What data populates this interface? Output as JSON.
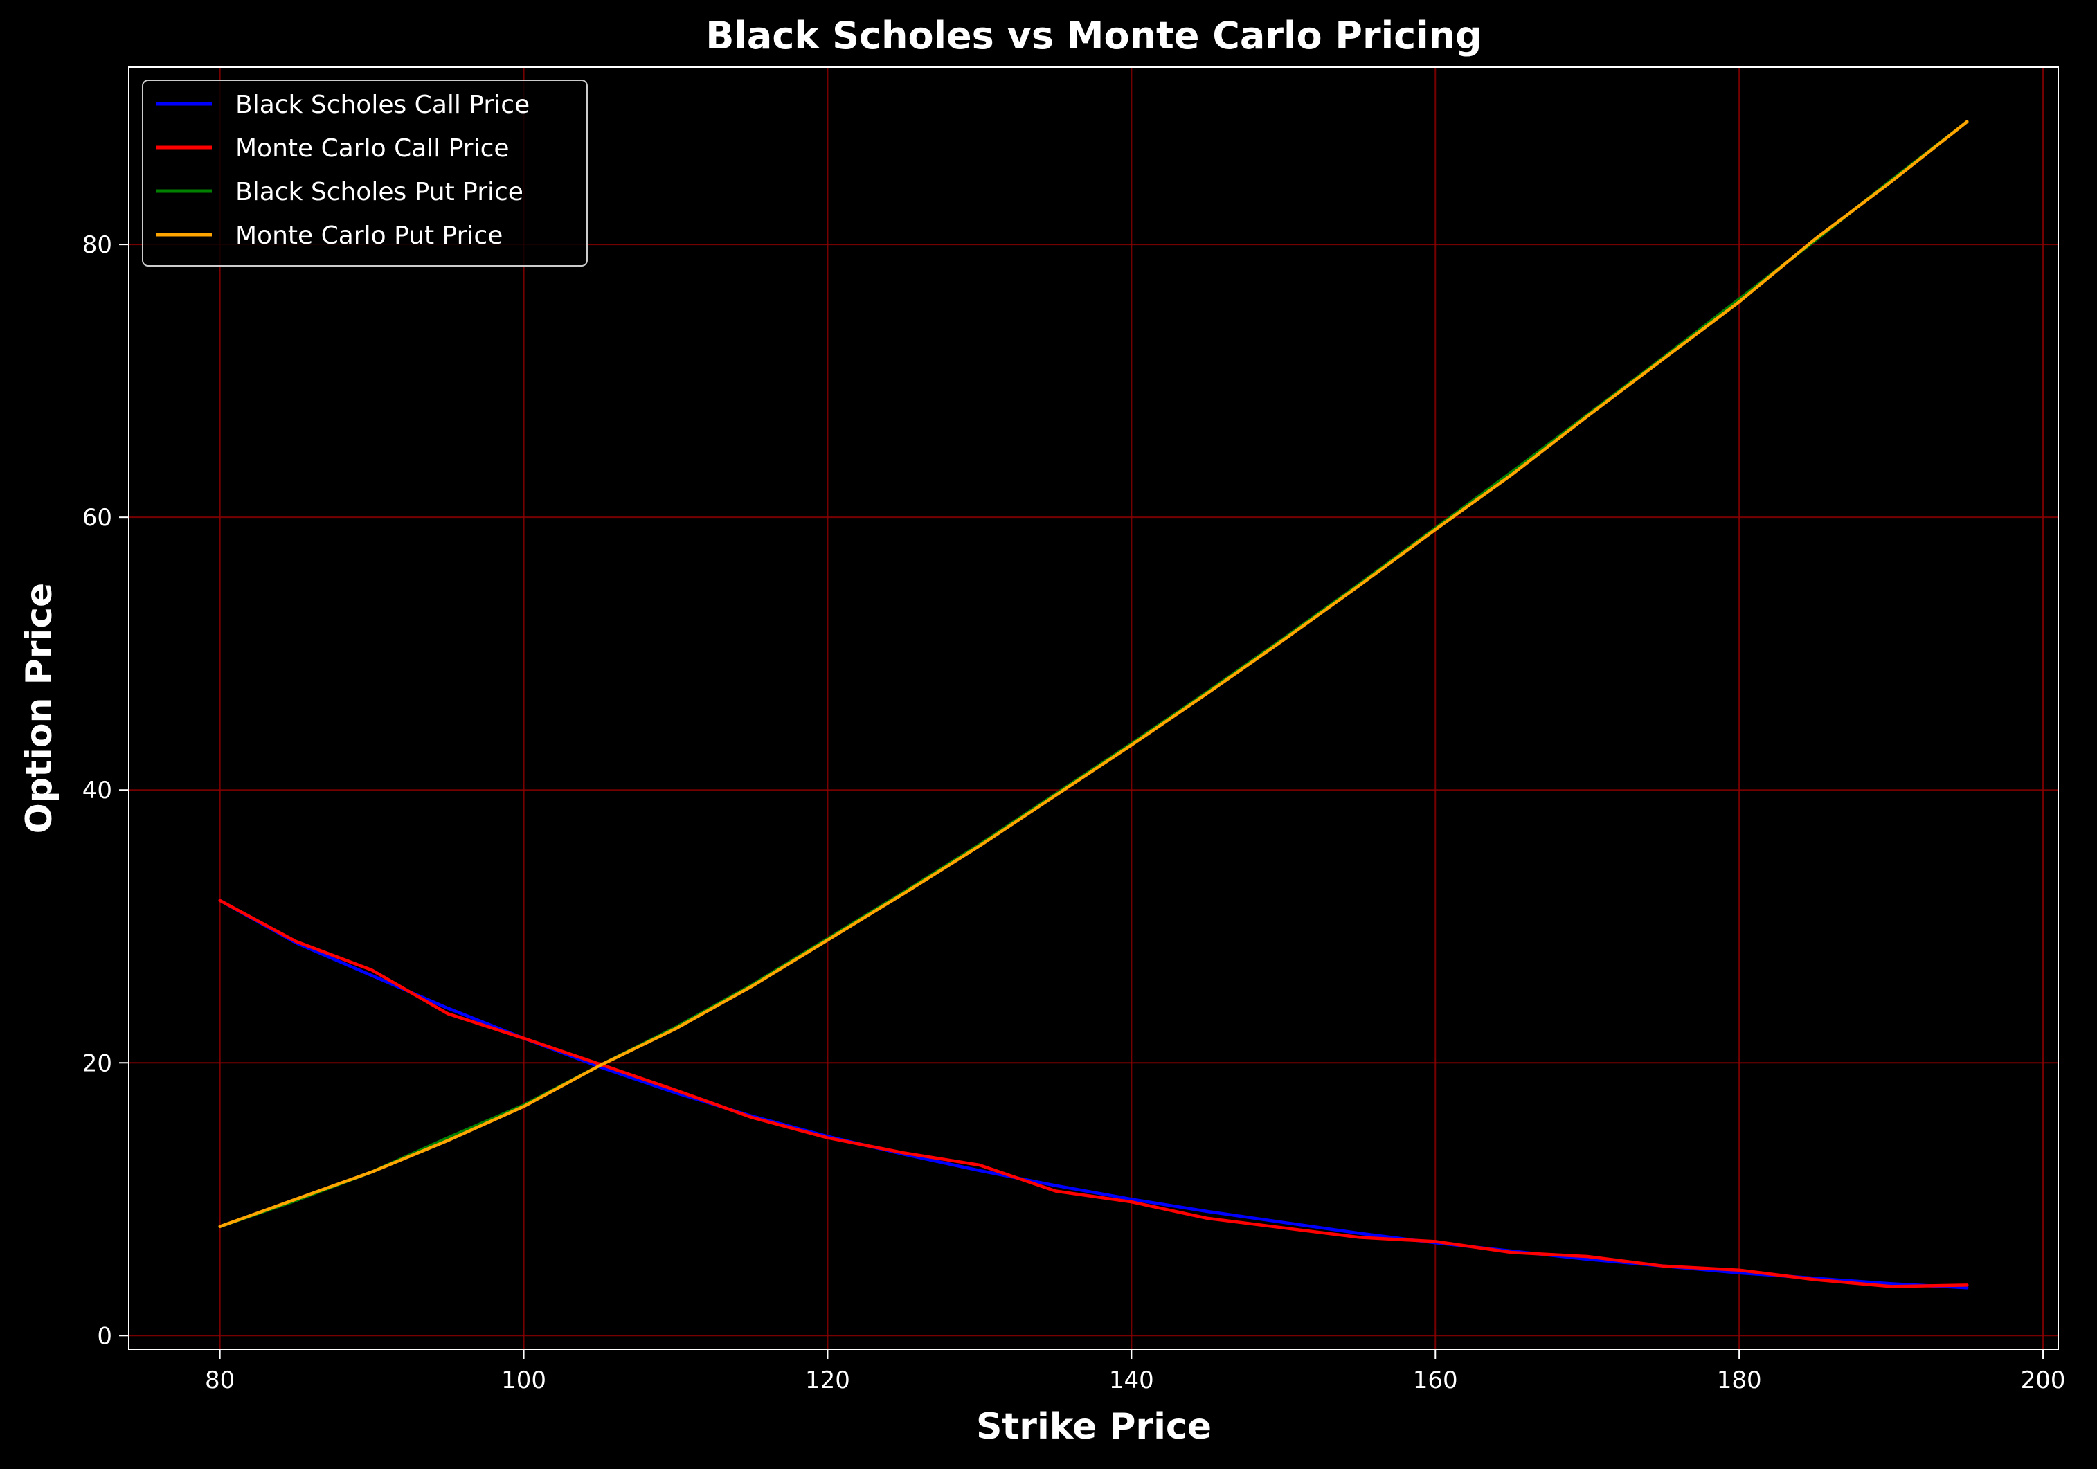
{
  "chart_data": {
    "type": "line",
    "title": "Black Scholes vs Monte Carlo Pricing",
    "xlabel": "Strike Price",
    "ylabel": "Option Price",
    "xlim": [
      74,
      201
    ],
    "ylim": [
      -1,
      93
    ],
    "xticks": [
      80,
      100,
      120,
      140,
      160,
      180,
      200
    ],
    "yticks": [
      0,
      20,
      40,
      60,
      80
    ],
    "grid": true,
    "legend_position": "top-left",
    "x": [
      80,
      85,
      90,
      95,
      100,
      105,
      110,
      115,
      120,
      125,
      130,
      135,
      140,
      145,
      150,
      155,
      160,
      165,
      170,
      175,
      180,
      185,
      190,
      195
    ],
    "series": [
      {
        "name": "Black Scholes Call Price",
        "color": "#0000ff",
        "values": [
          31.9,
          28.8,
          26.4,
          24.0,
          21.8,
          19.7,
          17.8,
          16.1,
          14.6,
          13.3,
          12.1,
          11.0,
          10.0,
          9.1,
          8.3,
          7.5,
          6.8,
          6.2,
          5.6,
          5.1,
          4.6,
          4.2,
          3.8,
          3.5
        ]
      },
      {
        "name": "Monte Carlo Call Price",
        "color": "#ff0000",
        "values": [
          31.9,
          28.9,
          26.8,
          23.6,
          21.8,
          19.9,
          18.0,
          16.0,
          14.5,
          13.4,
          12.5,
          10.6,
          9.8,
          8.6,
          7.9,
          7.2,
          6.9,
          6.1,
          5.8,
          5.1,
          4.8,
          4.1,
          3.6,
          3.7
        ]
      },
      {
        "name": "Black Scholes Put Price",
        "color": "#008000",
        "values": [
          8.0,
          9.9,
          12.0,
          14.5,
          16.9,
          19.8,
          22.6,
          25.7,
          29.1,
          32.5,
          36.0,
          39.7,
          43.4,
          47.2,
          51.1,
          55.1,
          59.2,
          63.3,
          67.5,
          71.7,
          76.0,
          80.3,
          84.7,
          89.0
        ]
      },
      {
        "name": "Monte Carlo Put Price",
        "color": "#ffa500",
        "values": [
          8.0,
          10.0,
          12.0,
          14.3,
          16.8,
          19.8,
          22.5,
          25.6,
          29.0,
          32.4,
          35.9,
          39.6,
          43.3,
          47.1,
          51.0,
          55.0,
          59.1,
          63.1,
          67.4,
          71.6,
          75.8,
          80.4,
          84.6,
          89.0
        ]
      }
    ]
  }
}
